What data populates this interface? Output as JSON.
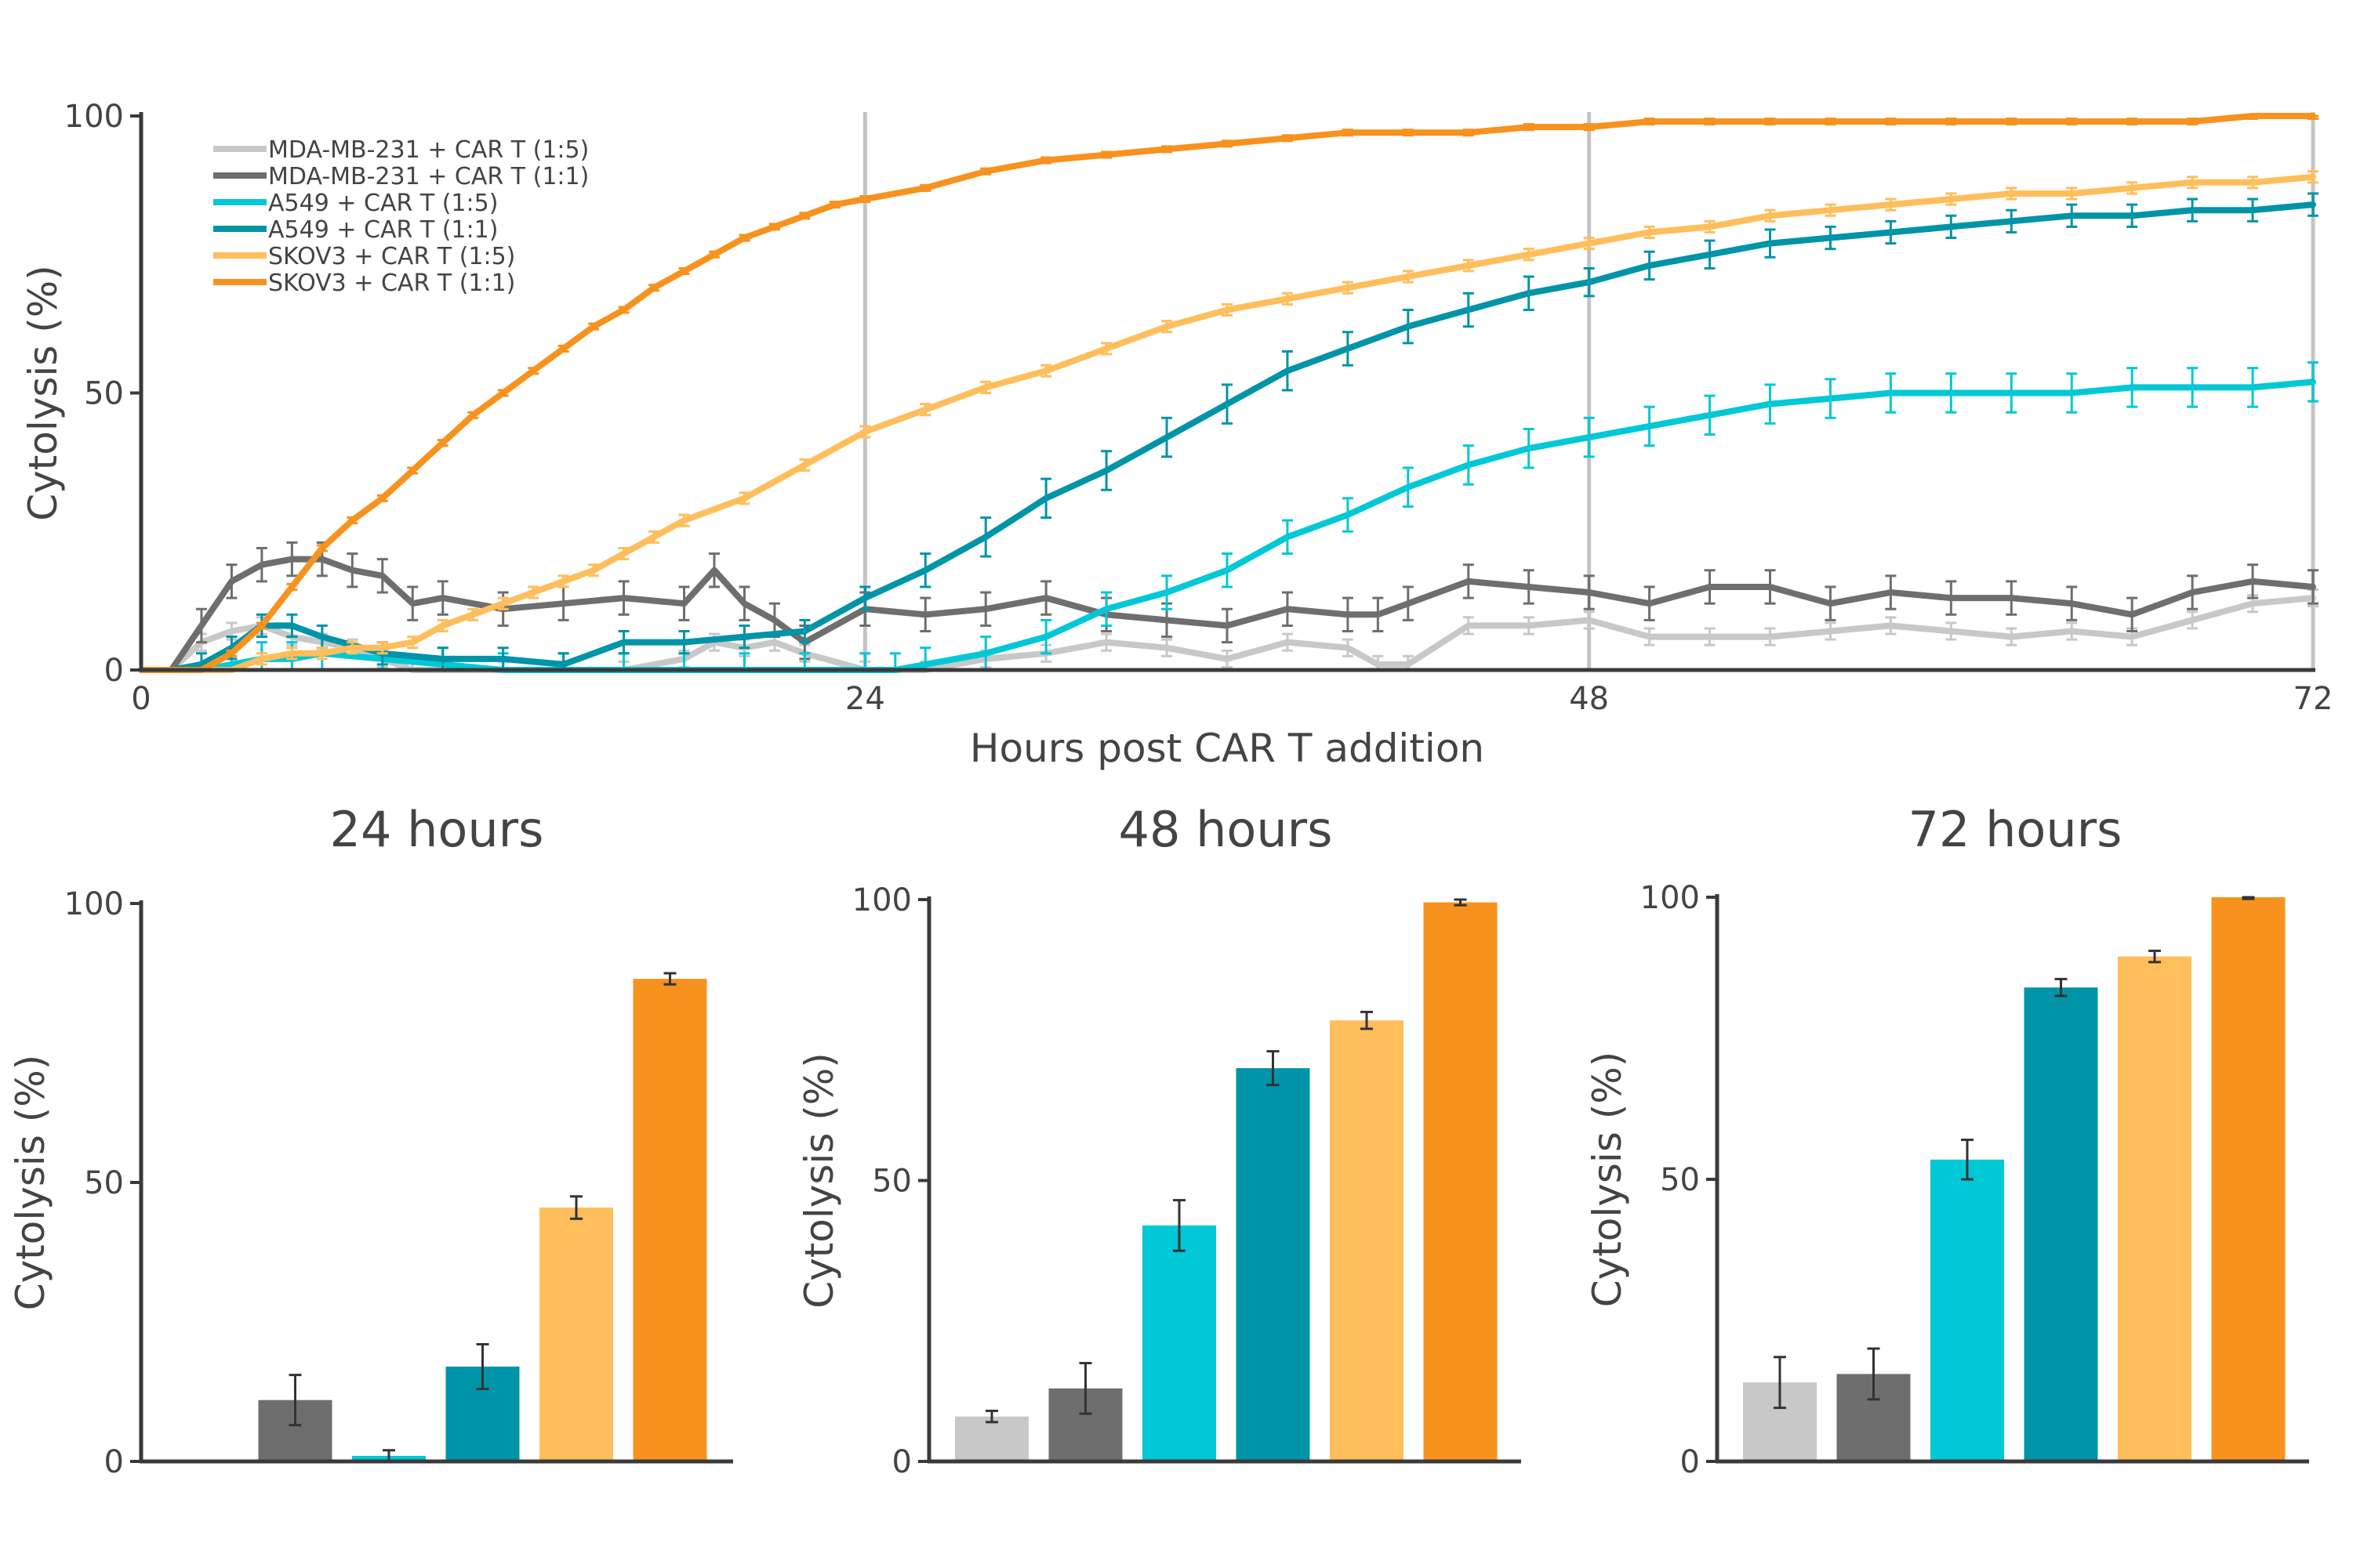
{
  "chart_data": [
    {
      "type": "line",
      "title": "",
      "xlabel": "Hours post CAR T addition",
      "ylabel": "Cytolysis (%)",
      "xlim": [
        0,
        72
      ],
      "ylim": [
        0,
        100
      ],
      "xticks": [
        0,
        24,
        48,
        72
      ],
      "yticks": [
        0,
        50,
        100
      ],
      "vlines": [
        24,
        48,
        72
      ],
      "grid": false,
      "legend_position": "top-left",
      "series": [
        {
          "name": "MDA-MB-231 + CAR T (1:5)",
          "color": "#c8c8c8",
          "x": [
            0,
            1,
            2,
            3,
            4,
            5,
            6,
            7,
            8,
            9,
            10,
            12,
            14,
            16,
            18,
            19,
            20,
            21,
            22,
            24,
            26,
            28,
            30,
            32,
            34,
            36,
            38,
            40,
            41,
            42,
            44,
            46,
            48,
            50,
            52,
            54,
            56,
            58,
            60,
            62,
            64,
            66,
            68,
            70,
            72
          ],
          "y": [
            0,
            0,
            5,
            7,
            8,
            6,
            5,
            4,
            2,
            0,
            0,
            0,
            0,
            0,
            2,
            5,
            4,
            5,
            3,
            0,
            0,
            2,
            3,
            5,
            4,
            2,
            5,
            4,
            1,
            1,
            8,
            8,
            9,
            6,
            6,
            6,
            7,
            8,
            7,
            6,
            7,
            6,
            9,
            12,
            13
          ],
          "err": [
            0,
            0,
            1.5,
            1.5,
            1.5,
            1.5,
            1.5,
            1.5,
            1.5,
            1.5,
            1.5,
            1.5,
            1.5,
            1.5,
            1.5,
            1.5,
            1.5,
            1.5,
            1.5,
            1.5,
            1.5,
            1.5,
            1.5,
            1.5,
            1.5,
            1.5,
            1.5,
            1.5,
            1.5,
            1.5,
            1.5,
            1.5,
            1.5,
            1.5,
            1.5,
            1.5,
            1.5,
            1.5,
            1.5,
            1.5,
            1.5,
            1.5,
            1.5,
            1.5,
            1.5
          ]
        },
        {
          "name": "MDA-MB-231 + CAR T (1:1)",
          "color": "#6e6e6e",
          "x": [
            0,
            1,
            2,
            3,
            4,
            5,
            6,
            7,
            8,
            9,
            10,
            12,
            14,
            16,
            18,
            19,
            20,
            21,
            22,
            24,
            26,
            28,
            30,
            32,
            34,
            36,
            38,
            40,
            41,
            42,
            44,
            46,
            48,
            50,
            52,
            54,
            56,
            58,
            60,
            62,
            64,
            66,
            68,
            70,
            72
          ],
          "y": [
            0,
            0,
            8,
            16,
            19,
            20,
            20,
            18,
            17,
            12,
            13,
            11,
            12,
            13,
            12,
            18,
            12,
            9,
            5,
            11,
            10,
            11,
            13,
            10,
            9,
            8,
            11,
            10,
            10,
            12,
            16,
            15,
            14,
            12,
            15,
            15,
            12,
            14,
            13,
            13,
            12,
            10,
            14,
            16,
            15
          ],
          "err": [
            0,
            0,
            3,
            3,
            3,
            3,
            3,
            3,
            3,
            3,
            3,
            3,
            3,
            3,
            3,
            3,
            3,
            3,
            3,
            3,
            3,
            3,
            3,
            3,
            3,
            3,
            3,
            3,
            3,
            3,
            3,
            3,
            3,
            3,
            3,
            3,
            3,
            3,
            3,
            3,
            3,
            3,
            3,
            3,
            3
          ]
        },
        {
          "name": "A549 + CAR T (1:5)",
          "color": "#00c8d6",
          "x": [
            0,
            1,
            2,
            3,
            4,
            5,
            6,
            8,
            10,
            12,
            14,
            16,
            18,
            20,
            22,
            24,
            25,
            26,
            28,
            30,
            32,
            34,
            36,
            38,
            40,
            42,
            44,
            46,
            48,
            50,
            52,
            54,
            56,
            58,
            60,
            62,
            64,
            66,
            68,
            70,
            72
          ],
          "y": [
            0,
            0,
            0,
            1,
            2,
            2,
            3,
            2,
            1,
            0,
            0,
            0,
            0,
            0,
            0,
            0,
            0,
            1,
            3,
            6,
            11,
            14,
            18,
            24,
            28,
            33,
            37,
            40,
            42,
            44,
            46,
            48,
            49,
            50,
            50,
            50,
            50,
            51,
            51,
            51,
            52
          ],
          "err": [
            0,
            0,
            0,
            3,
            3,
            3,
            3,
            3,
            3,
            3,
            3,
            3,
            3,
            3,
            3,
            3,
            3,
            3,
            3,
            3,
            3,
            3,
            3,
            3,
            3,
            3.5,
            3.5,
            3.5,
            3.5,
            3.5,
            3.5,
            3.5,
            3.5,
            3.5,
            3.5,
            3.5,
            3.5,
            3.5,
            3.5,
            3.5,
            3.5
          ]
        },
        {
          "name": "A549 + CAR T (1:1)",
          "color": "#0094a8",
          "x": [
            0,
            1,
            2,
            3,
            4,
            5,
            6,
            8,
            10,
            12,
            14,
            16,
            18,
            20,
            22,
            24,
            26,
            28,
            30,
            32,
            34,
            36,
            38,
            40,
            42,
            44,
            46,
            48,
            50,
            52,
            54,
            56,
            58,
            60,
            62,
            64,
            66,
            68,
            70,
            72
          ],
          "y": [
            0,
            0,
            1,
            4,
            8,
            8,
            6,
            3,
            2,
            2,
            1,
            5,
            5,
            6,
            7,
            13,
            18,
            24,
            31,
            36,
            42,
            48,
            54,
            58,
            62,
            65,
            68,
            70,
            73,
            75,
            77,
            78,
            79,
            80,
            81,
            82,
            82,
            83,
            83,
            84
          ],
          "err": [
            0,
            0,
            2,
            2,
            2,
            2,
            2,
            2,
            2,
            2,
            2,
            2,
            2,
            2,
            2,
            2,
            3,
            3.5,
            3.5,
            3.5,
            3.5,
            3.5,
            3.5,
            3,
            3,
            3,
            3,
            2.5,
            2.5,
            2.5,
            2.5,
            2,
            2,
            2,
            2,
            2,
            2,
            2,
            2,
            2
          ]
        },
        {
          "name": "SKOV3 + CAR T (1:5)",
          "color": "#ffbe5c",
          "x": [
            0,
            1,
            2,
            3,
            4,
            5,
            6,
            7,
            8,
            9,
            10,
            11,
            12,
            13,
            14,
            15,
            16,
            17,
            18,
            20,
            22,
            24,
            26,
            28,
            30,
            32,
            34,
            36,
            38,
            40,
            42,
            44,
            46,
            48,
            50,
            52,
            54,
            56,
            58,
            60,
            62,
            64,
            66,
            68,
            70,
            72
          ],
          "y": [
            0,
            0,
            0,
            0,
            2,
            3,
            3,
            4,
            4,
            5,
            8,
            10,
            12,
            14,
            16,
            18,
            21,
            24,
            27,
            31,
            37,
            43,
            47,
            51,
            54,
            58,
            62,
            65,
            67,
            69,
            71,
            73,
            75,
            77,
            79,
            80,
            82,
            83,
            84,
            85,
            86,
            86,
            87,
            88,
            88,
            89
          ],
          "err": [
            0,
            0,
            0,
            0,
            1,
            1,
            1,
            1,
            1,
            1,
            1,
            1,
            1,
            1,
            1,
            1,
            1,
            1,
            1,
            1,
            1,
            1,
            1,
            1,
            1,
            1,
            1,
            1,
            1,
            1,
            1,
            1,
            1,
            1,
            1,
            1,
            1,
            1,
            1,
            1,
            1,
            1,
            1,
            1,
            1,
            1
          ]
        },
        {
          "name": "SKOV3 + CAR T (1:1)",
          "color": "#f7921e",
          "x": [
            0,
            1,
            2,
            3,
            4,
            5,
            6,
            7,
            8,
            9,
            10,
            11,
            12,
            13,
            14,
            15,
            16,
            17,
            18,
            19,
            20,
            21,
            22,
            23,
            24,
            26,
            28,
            30,
            32,
            34,
            36,
            38,
            40,
            42,
            44,
            46,
            48,
            50,
            52,
            54,
            56,
            58,
            60,
            62,
            64,
            66,
            68,
            70,
            72
          ],
          "y": [
            0,
            0,
            0,
            3,
            8,
            15,
            22,
            27,
            31,
            36,
            41,
            46,
            50,
            54,
            58,
            62,
            65,
            69,
            72,
            75,
            78,
            80,
            82,
            84,
            85,
            87,
            90,
            92,
            93,
            94,
            95,
            96,
            97,
            97,
            97,
            98,
            98,
            99,
            99,
            99,
            99,
            99,
            99,
            99,
            99,
            99,
            99,
            100,
            100
          ],
          "err": [
            0,
            0,
            0,
            0.5,
            0.5,
            0.5,
            0.5,
            0.5,
            0.5,
            0.5,
            0.5,
            0.5,
            0.5,
            0.5,
            0.5,
            0.5,
            0.5,
            0.5,
            0.5,
            0.5,
            0.5,
            0.5,
            0.5,
            0.5,
            0.5,
            0.5,
            0.5,
            0.5,
            0.5,
            0.5,
            0.5,
            0.5,
            0.5,
            0.5,
            0.5,
            0.5,
            0.5,
            0.5,
            0.5,
            0.5,
            0.5,
            0.5,
            0.5,
            0.5,
            0.5,
            0.5,
            0.5,
            0.5,
            0.5
          ]
        }
      ]
    },
    {
      "type": "bar",
      "title": "24 hours",
      "ylabel": "Cytolysis (%)",
      "ylim": [
        0,
        100
      ],
      "yticks": [
        0,
        50,
        100
      ],
      "categories": [
        "MDA-MB-231 + CAR T (1:5)",
        "MDA-MB-231 + CAR T (1:1)",
        "A549 + CAR T (1:5)",
        "A549 + CAR T (1:1)",
        "SKOV3 + CAR T (1:5)",
        "SKOV3 + CAR T (1:1)"
      ],
      "colors": [
        "#c8c8c8",
        "#6e6e6e",
        "#00c8d6",
        "#0094a8",
        "#ffbe5c",
        "#f7921e"
      ],
      "values": [
        0,
        11,
        1,
        17,
        45.5,
        86.5
      ],
      "errors": [
        0,
        4.5,
        1,
        4,
        2,
        1
      ]
    },
    {
      "type": "bar",
      "title": "48 hours",
      "ylabel": "Cytolysis (%)",
      "ylim": [
        0,
        100
      ],
      "yticks": [
        0,
        50,
        100
      ],
      "categories": [
        "MDA-MB-231 + CAR T (1:5)",
        "MDA-MB-231 + CAR T (1:1)",
        "A549 + CAR T (1:5)",
        "A549 + CAR T (1:1)",
        "SKOV3 + CAR T (1:5)",
        "SKOV3 + CAR T (1:1)"
      ],
      "colors": [
        "#c8c8c8",
        "#6e6e6e",
        "#00c8d6",
        "#0094a8",
        "#ffbe5c",
        "#f7921e"
      ],
      "values": [
        8,
        13,
        42,
        70,
        78.5,
        99.5
      ],
      "errors": [
        1,
        4.5,
        4.5,
        3,
        1.5,
        0.5
      ]
    },
    {
      "type": "bar",
      "title": "72 hours",
      "ylabel": "Cytolysis (%)",
      "ylim": [
        0,
        100
      ],
      "yticks": [
        0,
        50,
        100
      ],
      "categories": [
        "MDA-MB-231 + CAR T (1:5)",
        "MDA-MB-231 + CAR T (1:1)",
        "A549 + CAR T (1:5)",
        "A549 + CAR T (1:1)",
        "SKOV3 + CAR T (1:5)",
        "SKOV3 + CAR T (1:1)"
      ],
      "colors": [
        "#c8c8c8",
        "#6e6e6e",
        "#00c8d6",
        "#0094a8",
        "#ffbe5c",
        "#f7921e"
      ],
      "values": [
        14,
        15.5,
        53.5,
        84,
        89.5,
        100
      ],
      "errors": [
        4.5,
        4.5,
        3.5,
        1.5,
        1,
        0.3
      ]
    }
  ]
}
